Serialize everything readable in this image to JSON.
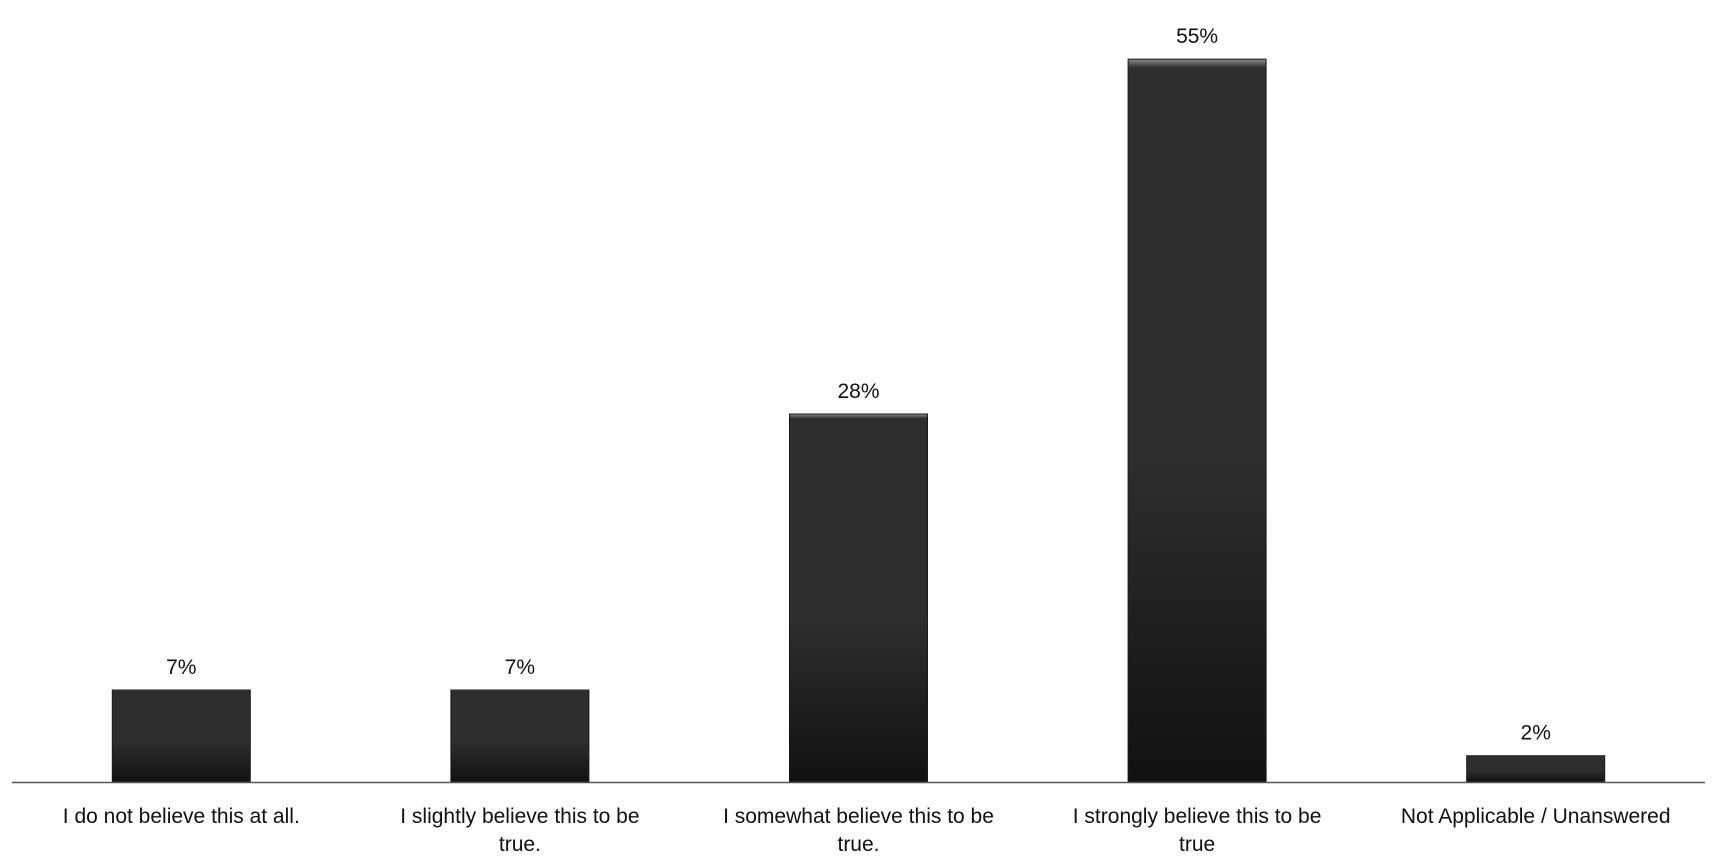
{
  "chart_data": {
    "type": "bar",
    "categories": [
      "I do not believe this at all.",
      "I slightly believe this to be true.",
      "I somewhat believe this to be true.",
      "I strongly believe this to be true",
      "Not Applicable / Unanswered"
    ],
    "values": [
      7,
      7,
      28,
      55,
      2
    ],
    "data_labels": [
      "7%",
      "7%",
      "28%",
      "55%",
      "2%"
    ],
    "title": "",
    "xlabel": "",
    "ylabel": "",
    "ylim": [
      0,
      56
    ],
    "grid": false,
    "legend": "none",
    "colors": {
      "bar_top": "#8c8c8c",
      "bar_mid": "#2e2e2e",
      "bar_bottom": "#111111",
      "axis": "#555555"
    }
  }
}
